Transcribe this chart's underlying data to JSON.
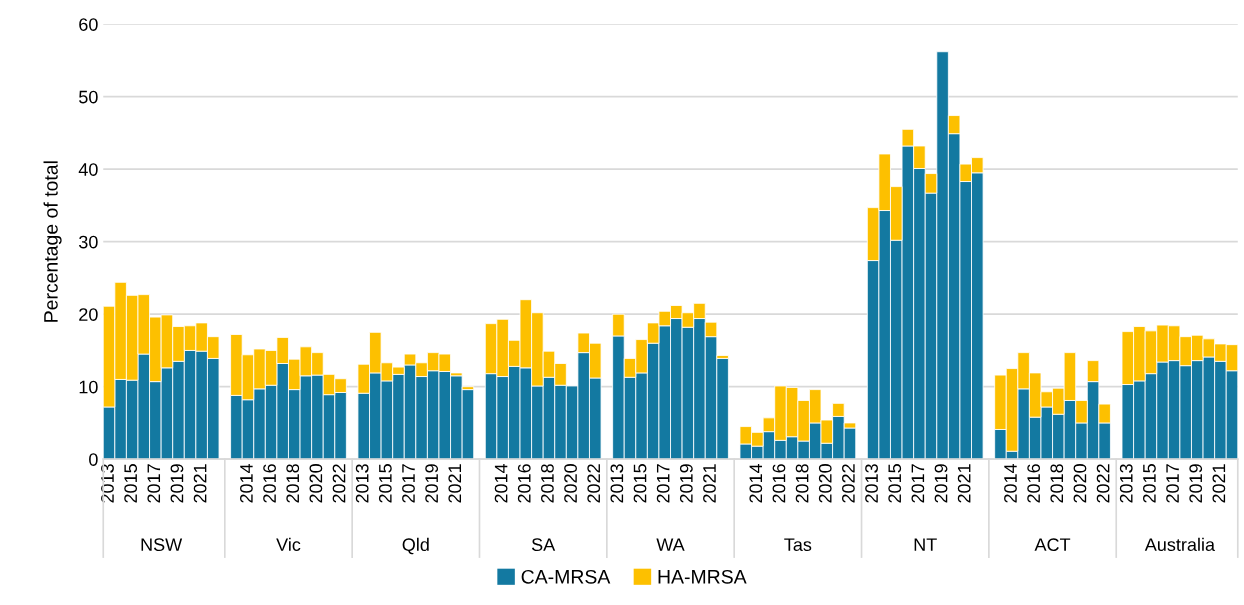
{
  "chart_data": {
    "type": "bar",
    "stacked": true,
    "ylabel": "Percentage of total",
    "categories": [
      "2013",
      null,
      "2015",
      null,
      "2017",
      null,
      "2019",
      null,
      "2021",
      null,
      null,
      "2014",
      null,
      "2016",
      null,
      "2018",
      null,
      "2020",
      null,
      "2022",
      "2013",
      null,
      "2015",
      null,
      "2017",
      null,
      "2019",
      null,
      "2021",
      null,
      null,
      "2014",
      null,
      "2016",
      null,
      "2018",
      null,
      "2020",
      null,
      "2022",
      "2013",
      null,
      "2015",
      null,
      "2017",
      null,
      "2019",
      null,
      "2021",
      null,
      null,
      "2014",
      null,
      "2016",
      null,
      "2018",
      null,
      "2020",
      null,
      "2022",
      "2013",
      null,
      "2015",
      null,
      "2017",
      null,
      "2019",
      null,
      "2021",
      null,
      null,
      "2014",
      null,
      "2016",
      null,
      "2018",
      null,
      "2020",
      null,
      "2022",
      "2013",
      null,
      "2015",
      null,
      "2017",
      null,
      "2019",
      null,
      "2021",
      null
    ],
    "annotations": [
      "NSW",
      "Vic",
      "Qld",
      "SA",
      "WA",
      "Tas",
      "NT",
      "ACT",
      "Australia"
    ],
    "series": [
      {
        "name": "CA-MRSA",
        "color": "#1379a1",
        "values": [
          7.2,
          11.0,
          10.9,
          14.5,
          10.7,
          12.6,
          13.5,
          15.0,
          14.9,
          13.9,
          8.8,
          8.2,
          9.7,
          10.2,
          13.2,
          9.6,
          11.5,
          11.6,
          8.9,
          9.2,
          9.1,
          11.9,
          10.8,
          11.7,
          13.0,
          11.4,
          12.2,
          12.1,
          11.5,
          9.6,
          11.8,
          11.4,
          12.8,
          12.6,
          10.1,
          11.3,
          10.2,
          10.1,
          14.7,
          11.2,
          17.0,
          11.3,
          11.9,
          16.0,
          18.4,
          19.4,
          18.2,
          19.4,
          16.9,
          13.9,
          2.1,
          1.8,
          3.8,
          2.6,
          3.1,
          2.5,
          5.0,
          2.2,
          5.9,
          4.3,
          27.4,
          34.3,
          30.2,
          43.2,
          40.1,
          36.7,
          56.2,
          44.9,
          38.3,
          39.5,
          4.1,
          1.1,
          9.7,
          5.8,
          7.2,
          6.2,
          8.1,
          5.0,
          10.7,
          5.0,
          10.3,
          10.8,
          11.8,
          13.4,
          13.6,
          12.9,
          13.6,
          14.1,
          13.5,
          12.2
        ]
      },
      {
        "name": "HA-MRSA",
        "color": "#fdc000",
        "values": [
          13.9,
          13.4,
          11.7,
          8.2,
          8.9,
          7.3,
          4.8,
          3.4,
          3.9,
          3.0,
          8.4,
          6.2,
          5.5,
          4.8,
          3.6,
          4.2,
          4.0,
          3.1,
          2.8,
          1.9,
          4.0,
          5.6,
          2.5,
          1.0,
          1.5,
          1.9,
          2.5,
          2.4,
          0.4,
          0.4,
          6.9,
          7.9,
          3.6,
          9.4,
          10.1,
          3.6,
          3.0,
          0,
          2.7,
          4.8,
          3.0,
          2.6,
          4.6,
          2.8,
          2.0,
          1.8,
          2.0,
          2.1,
          2.0,
          0.4,
          2.4,
          1.9,
          1.9,
          7.5,
          6.8,
          5.6,
          4.6,
          3.2,
          1.8,
          0.7,
          7.3,
          7.8,
          7.4,
          2.3,
          3.1,
          2.7,
          0,
          2.5,
          2.4,
          2.1,
          7.5,
          11.4,
          5.0,
          6.1,
          2.1,
          3.6,
          6.6,
          3.1,
          2.9,
          2.6,
          7.3,
          7.5,
          5.9,
          5.1,
          4.8,
          4.0,
          3.5,
          2.5,
          2.4,
          3.6
        ]
      }
    ],
    "ylim": [
      0,
      60
    ],
    "yticks": [
      0,
      10,
      20,
      30,
      40,
      50,
      60
    ],
    "grid": "y",
    "legend": "bottom"
  }
}
